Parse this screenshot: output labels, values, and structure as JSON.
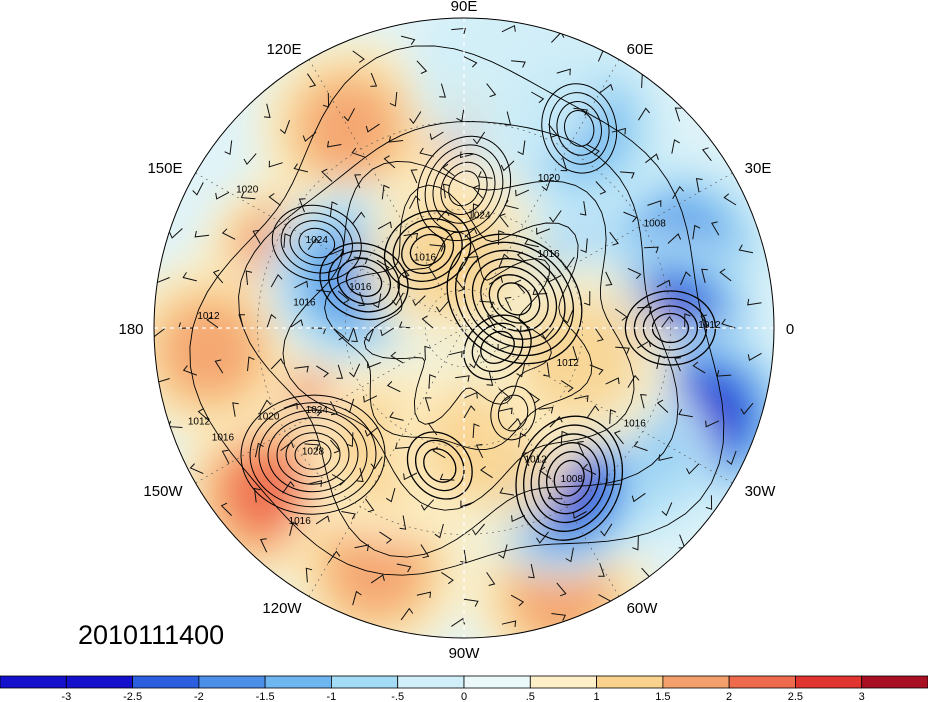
{
  "date_stamp": "2010111400",
  "longitude_labels": {
    "lon_90e": "90E",
    "lon_60e": "60E",
    "lon_30e": "30E",
    "lon_0": "0",
    "lon_30w": "30W",
    "lon_60w": "60W",
    "lon_90w": "90W",
    "lon_120w": "120W",
    "lon_150w": "150W",
    "lon_180": "180",
    "lon_150e": "150E",
    "lon_120e": "120E"
  },
  "contour_labels": [
    {
      "text": "1020",
      "lon": 60,
      "lat": 48
    },
    {
      "text": "1024",
      "lon": 82,
      "lat": 62
    },
    {
      "text": "1016",
      "lon": 40,
      "lat": 62
    },
    {
      "text": "1008",
      "lon": 28,
      "lat": 38
    },
    {
      "text": "1024",
      "lon": 150,
      "lat": 48
    },
    {
      "text": "1020",
      "lon": 148,
      "lat": 30
    },
    {
      "text": "1012",
      "lon": 178,
      "lat": 30
    },
    {
      "text": "1016",
      "lon": 172,
      "lat": 50
    },
    {
      "text": "1016",
      "lon": 160,
      "lat": 62
    },
    {
      "text": "1016",
      "lon": 120,
      "lat": 70
    },
    {
      "text": "1012",
      "lon": -20,
      "lat": 62
    },
    {
      "text": "1024",
      "lon": -150,
      "lat": 48
    },
    {
      "text": "1020",
      "lon": -155,
      "lat": 38
    },
    {
      "text": "1028",
      "lon": -140,
      "lat": 42
    },
    {
      "text": "1016",
      "lon": -155,
      "lat": 28
    },
    {
      "text": "1016",
      "lon": -130,
      "lat": 30
    },
    {
      "text": "1012",
      "lon": -160,
      "lat": 25
    },
    {
      "text": "1012",
      "lon": -62,
      "lat": 52
    },
    {
      "text": "1008",
      "lon": -55,
      "lat": 44
    },
    {
      "text": "1012",
      "lon": 0,
      "lat": 32
    },
    {
      "text": "1016",
      "lon": -30,
      "lat": 42
    }
  ],
  "colorbar": {
    "tick_labels": [
      "-3",
      "-2.5",
      "-2",
      "-1.5",
      "-1",
      "-.5",
      "0",
      ".5",
      "1",
      "1.5",
      "2",
      "2.5",
      "3"
    ],
    "colors": [
      "#1410cc",
      "#2c5fe0",
      "#4c8fe8",
      "#6eb6f0",
      "#a4dcf5",
      "#d0eff8",
      "#ecf9fb",
      "#fdf0c8",
      "#f9d28d",
      "#f4a06c",
      "#ee6a4d",
      "#e0352f",
      "#a80f22"
    ]
  },
  "anomaly_centers": [
    {
      "lon": 90,
      "lat": 52,
      "value": 2.6
    },
    {
      "lon": 60,
      "lat": 62,
      "value": 2.0
    },
    {
      "lon": 125,
      "lat": 65,
      "value": 1.8
    },
    {
      "lon": -145,
      "lat": 42,
      "value": 2.9
    },
    {
      "lon": -140,
      "lat": 30,
      "value": 1.8
    },
    {
      "lon": 160,
      "lat": 45,
      "value": 1.9
    },
    {
      "lon": -175,
      "lat": 30,
      "value": 1.5
    },
    {
      "lon": -110,
      "lat": 30,
      "value": 1.6
    },
    {
      "lon": -70,
      "lat": 25,
      "value": 1.4
    },
    {
      "lon": 120,
      "lat": 35,
      "value": 1.7
    },
    {
      "lon": 30,
      "lat": 50,
      "value": -2.0
    },
    {
      "lon": 20,
      "lat": 35,
      "value": -2.0
    },
    {
      "lon": 0,
      "lat": 40,
      "value": -2.8
    },
    {
      "lon": -20,
      "lat": 30,
      "value": -2.9
    },
    {
      "lon": -40,
      "lat": 40,
      "value": -1.5
    },
    {
      "lon": -58,
      "lat": 45,
      "value": -2.8
    },
    {
      "lon": 40,
      "lat": 75,
      "value": -1.8
    },
    {
      "lon": 155,
      "lat": 60,
      "value": -1.8
    },
    {
      "lon": -30,
      "lat": 70,
      "value": -1.5
    },
    {
      "lon": 60,
      "lat": 35,
      "value": -1.3
    },
    {
      "lon": -120,
      "lat": 55,
      "value": 0.9
    },
    {
      "lon": -80,
      "lat": 60,
      "value": 1.1
    },
    {
      "lon": -15,
      "lat": 60,
      "value": 1.2
    },
    {
      "lon": 100,
      "lat": 72,
      "value": 1.2
    },
    {
      "lon": 80,
      "lat": 30,
      "value": -0.6
    }
  ],
  "pressure_centers": [
    {
      "lon": -140,
      "lat": 42,
      "kind": "high",
      "amp": 14
    },
    {
      "lon": 90,
      "lat": 55,
      "kind": "high",
      "amp": 10
    },
    {
      "lon": 150,
      "lat": 48,
      "kind": "high",
      "amp": 8
    },
    {
      "lon": 60,
      "lat": 35,
      "kind": "high",
      "amp": 8
    },
    {
      "lon": -60,
      "lat": 65,
      "kind": "high",
      "amp": 4
    },
    {
      "lon": 30,
      "lat": 75,
      "kind": "low",
      "amp": 14
    },
    {
      "lon": -55,
      "lat": 45,
      "kind": "low",
      "amp": 12
    },
    {
      "lon": 0,
      "lat": 40,
      "kind": "low",
      "amp": 8
    },
    {
      "lon": 155,
      "lat": 62,
      "kind": "low",
      "amp": 8
    },
    {
      "lon": -30,
      "lat": 80,
      "kind": "low",
      "amp": 6
    },
    {
      "lon": 115,
      "lat": 68,
      "kind": "low",
      "amp": 8
    },
    {
      "lon": -100,
      "lat": 55,
      "kind": "low",
      "amp": 6
    }
  ]
}
